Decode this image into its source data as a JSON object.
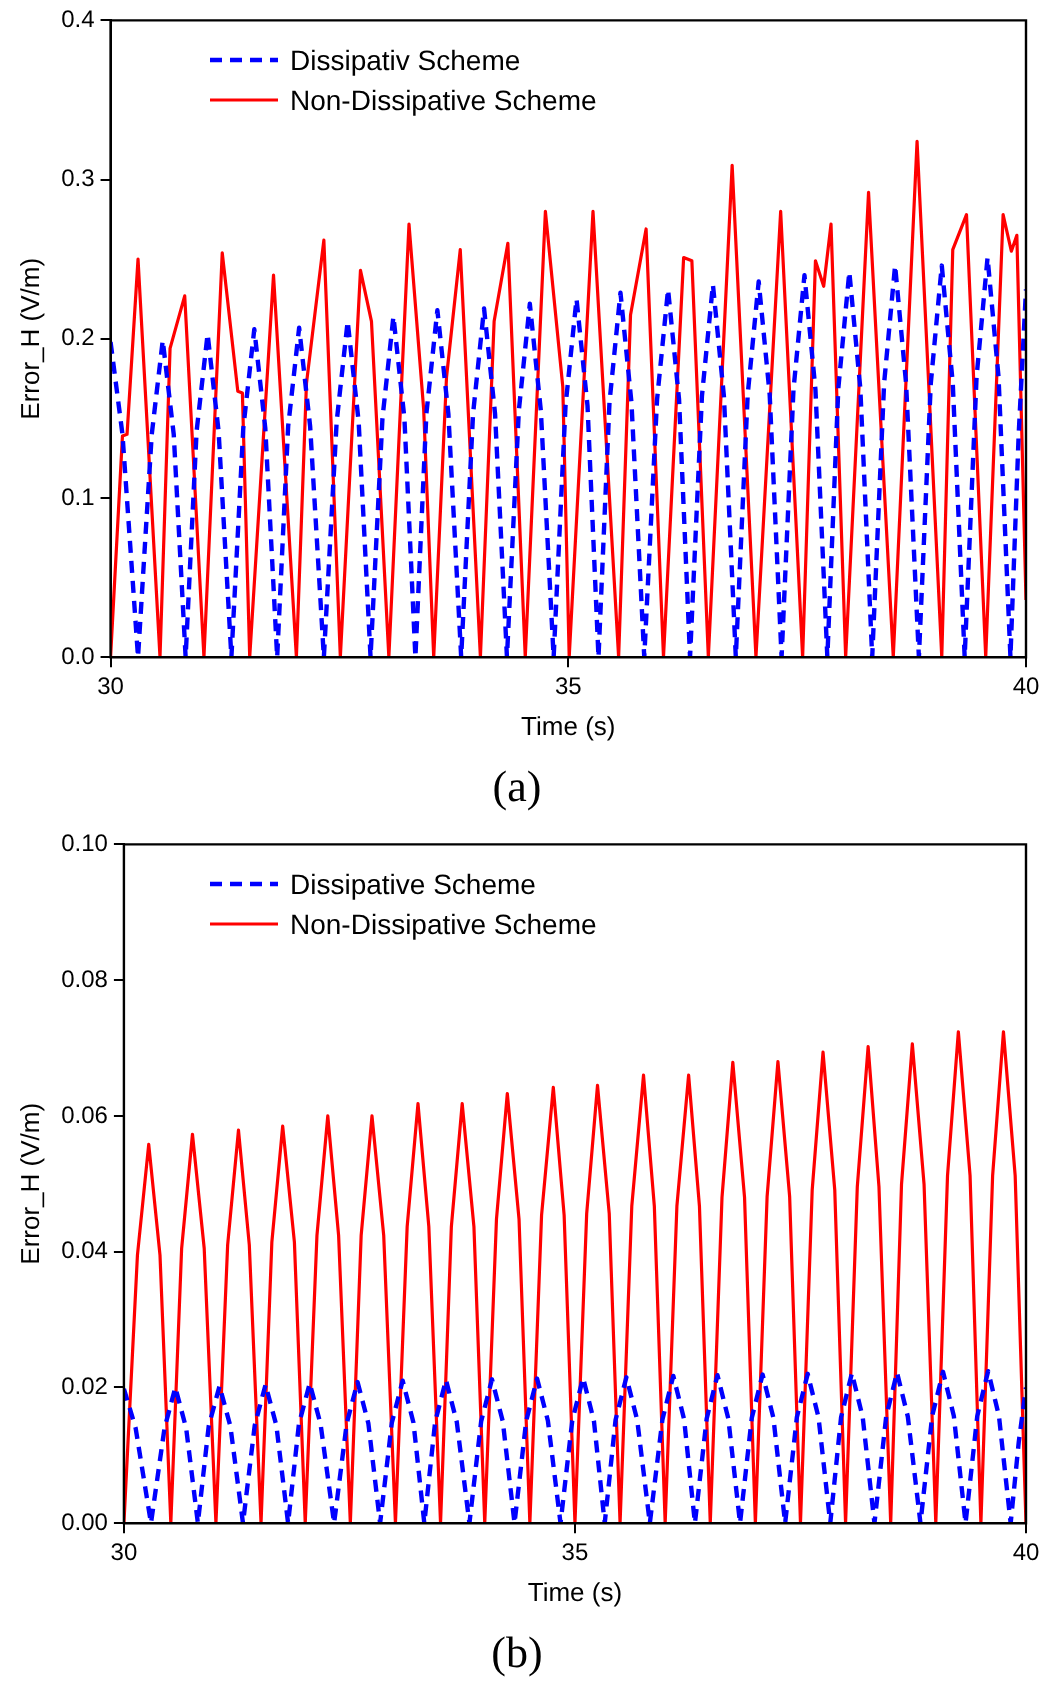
{
  "chart_data": [
    {
      "type": "line",
      "title": "(a)",
      "xlabel": "Time (s)",
      "ylabel": "Error_H (V/m)",
      "xlim": [
        30,
        40
      ],
      "xticks": [
        30,
        35,
        40
      ],
      "ylim": [
        0,
        0.4
      ],
      "yticks": [
        {
          "value": 0,
          "label": "0.0"
        },
        {
          "value": 0.1,
          "label": "0.1"
        },
        {
          "value": 0.2,
          "label": "0.2"
        },
        {
          "value": 0.3,
          "label": "0.3"
        },
        {
          "value": 0.4,
          "label": "0.4"
        }
      ],
      "grid": false,
      "legend": "top left",
      "marker": "none",
      "series": [
        {
          "name": "Dissipativ Scheme",
          "color": "#0000ff",
          "line_style": "dashed",
          "x": [
            30.0,
            30.13,
            30.3,
            30.45,
            30.57,
            30.69,
            30.82,
            30.94,
            31.06,
            31.18,
            31.32,
            31.45,
            31.57,
            31.69,
            31.82,
            31.94,
            32.06,
            32.18,
            32.33,
            32.47,
            32.59,
            32.71,
            32.84,
            32.97,
            33.09,
            33.21,
            33.33,
            33.45,
            33.57,
            33.69,
            33.83,
            33.96,
            34.08,
            34.2,
            34.33,
            34.46,
            34.58,
            34.7,
            34.84,
            34.97,
            35.09,
            35.21,
            35.33,
            35.45,
            35.57,
            35.69,
            35.83,
            35.97,
            36.09,
            36.21,
            36.33,
            36.46,
            36.58,
            36.7,
            36.83,
            36.96,
            37.08,
            37.2,
            37.33,
            37.46,
            37.58,
            37.7,
            37.83,
            37.95,
            38.07,
            38.19,
            38.32,
            38.45,
            38.57,
            38.69,
            38.83,
            38.96,
            39.08,
            39.2,
            39.33,
            39.46,
            39.58,
            39.7,
            39.83,
            39.92,
            40.0
          ],
          "values": [
            0.198,
            0.14,
            0,
            0.14,
            0.199,
            0.14,
            0,
            0.142,
            0.203,
            0.142,
            0,
            0.144,
            0.206,
            0.144,
            0,
            0.145,
            0.207,
            0.145,
            0,
            0.148,
            0.211,
            0.148,
            0,
            0.15,
            0.214,
            0.15,
            0,
            0.153,
            0.218,
            0.153,
            0,
            0.153,
            0.219,
            0.153,
            0,
            0.155,
            0.222,
            0.155,
            0,
            0.158,
            0.225,
            0.158,
            0,
            0.16,
            0.229,
            0.16,
            0,
            0.162,
            0.231,
            0.162,
            0,
            0.164,
            0.234,
            0.164,
            0,
            0.165,
            0.236,
            0.165,
            0,
            0.168,
            0.24,
            0.168,
            0,
            0.169,
            0.242,
            0.169,
            0,
            0.172,
            0.246,
            0.172,
            0,
            0.172,
            0.246,
            0.172,
            0,
            0.176,
            0.251,
            0.176,
            0,
            0.14,
            0.231
          ]
        },
        {
          "name": "Non-Dissipative Scheme",
          "color": "#ff0000",
          "line_style": "solid",
          "x": [
            30.0,
            30.13,
            30.18,
            30.3,
            30.54,
            30.65,
            30.81,
            31.02,
            31.22,
            31.39,
            31.44,
            31.52,
            31.78,
            32.03,
            32.14,
            32.33,
            32.51,
            32.73,
            32.85,
            33.04,
            33.26,
            33.42,
            33.53,
            33.67,
            33.82,
            34.04,
            34.19,
            34.34,
            34.53,
            34.75,
            34.94,
            35.01,
            35.27,
            35.55,
            35.68,
            35.85,
            36.04,
            36.26,
            36.35,
            36.53,
            36.79,
            37.05,
            37.32,
            37.56,
            37.7,
            37.79,
            37.87,
            38.03,
            38.28,
            38.55,
            38.81,
            39.08,
            39.2,
            39.35,
            39.56,
            39.75,
            39.84,
            39.9,
            40.0
          ],
          "values": [
            0,
            0.139,
            0.14,
            0.25,
            0,
            0.194,
            0.227,
            0,
            0.254,
            0.167,
            0.166,
            0,
            0.24,
            0,
            0.172,
            0.262,
            0,
            0.243,
            0.211,
            0,
            0.272,
            0.156,
            0,
            0.176,
            0.256,
            0,
            0.211,
            0.26,
            0,
            0.28,
            0.17,
            0,
            0.28,
            0,
            0.215,
            0.269,
            0,
            0.251,
            0.249,
            0,
            0.309,
            0,
            0.28,
            0,
            0.249,
            0.233,
            0.272,
            0,
            0.292,
            0,
            0.324,
            0,
            0.256,
            0.278,
            0,
            0.278,
            0.255,
            0.265,
            0.036
          ]
        }
      ]
    },
    {
      "type": "line",
      "title": "(b)",
      "xlabel": "Time (s)",
      "ylabel": "Error_H (V/m)",
      "xlim": [
        30,
        40
      ],
      "xticks": [
        30,
        35,
        40
      ],
      "ylim": [
        0,
        0.1
      ],
      "yticks": [
        {
          "value": 0,
          "label": "0.00"
        },
        {
          "value": 0.02,
          "label": "0.02"
        },
        {
          "value": 0.04,
          "label": "0.04"
        },
        {
          "value": 0.06,
          "label": "0.06"
        },
        {
          "value": 0.08,
          "label": "0.08"
        },
        {
          "value": 0.1,
          "label": "0.10"
        }
      ],
      "grid": false,
      "legend": "top left",
      "marker": "none",
      "series": [
        {
          "name": "Dissipative Scheme",
          "color": "#0000ff",
          "line_style": "dashed",
          "x": [
            30.0,
            30.13,
            30.3,
            30.45,
            30.57,
            30.69,
            30.82,
            30.94,
            31.06,
            31.18,
            31.32,
            31.45,
            31.57,
            31.69,
            31.82,
            31.94,
            32.06,
            32.18,
            32.33,
            32.47,
            32.59,
            32.71,
            32.84,
            32.97,
            33.09,
            33.21,
            33.33,
            33.45,
            33.57,
            33.69,
            33.83,
            33.96,
            34.08,
            34.2,
            34.33,
            34.46,
            34.58,
            34.7,
            34.84,
            34.97,
            35.09,
            35.21,
            35.33,
            35.45,
            35.57,
            35.69,
            35.83,
            35.97,
            36.09,
            36.21,
            36.33,
            36.46,
            36.58,
            36.7,
            36.83,
            36.96,
            37.08,
            37.2,
            37.33,
            37.46,
            37.58,
            37.7,
            37.83,
            37.95,
            38.07,
            38.19,
            38.32,
            38.45,
            38.57,
            38.69,
            38.83,
            38.96,
            39.08,
            39.2,
            39.33,
            39.46,
            39.58,
            39.7,
            39.83,
            39.92,
            40.0
          ],
          "values": [
            0.0198,
            0.014,
            0,
            0.014,
            0.02,
            0.014,
            0,
            0.0143,
            0.0202,
            0.0143,
            0,
            0.0144,
            0.0204,
            0.0144,
            0,
            0.0146,
            0.0206,
            0.0146,
            0,
            0.0147,
            0.0208,
            0.0147,
            0,
            0.0148,
            0.021,
            0.0148,
            0,
            0.0149,
            0.0211,
            0.0149,
            0,
            0.015,
            0.0212,
            0.015,
            0,
            0.0151,
            0.0213,
            0.0151,
            0,
            0.0151,
            0.0214,
            0.0151,
            0,
            0.0152,
            0.0215,
            0.0152,
            0,
            0.0153,
            0.0217,
            0.0153,
            0,
            0.0154,
            0.0218,
            0.0154,
            0,
            0.0155,
            0.0219,
            0.0155,
            0,
            0.0156,
            0.022,
            0.0156,
            0,
            0.0156,
            0.0221,
            0.0156,
            0,
            0.0157,
            0.0222,
            0.0157,
            0,
            0.0158,
            0.0223,
            0.0158,
            0,
            0.0158,
            0.0224,
            0.0158,
            0,
            0.012,
            0.02
          ]
        },
        {
          "name": "Non-Dissipative Scheme",
          "color": "#ff0000",
          "line_style": "solid",
          "x": [
            30.0,
            30.15,
            30.275,
            30.4,
            30.52,
            30.64,
            30.76,
            30.89,
            31.02,
            31.15,
            31.27,
            31.39,
            31.52,
            31.64,
            31.76,
            31.89,
            32.01,
            32.14,
            32.26,
            32.38,
            32.51,
            32.63,
            32.75,
            32.88,
            33.01,
            33.14,
            33.26,
            33.38,
            33.51,
            33.63,
            33.75,
            33.88,
            34.0,
            34.13,
            34.25,
            34.38,
            34.5,
            34.63,
            34.76,
            34.88,
            35.0,
            35.13,
            35.25,
            35.38,
            35.5,
            35.63,
            35.76,
            35.88,
            36.0,
            36.13,
            36.26,
            36.38,
            36.5,
            36.63,
            36.75,
            36.88,
            37.0,
            37.13,
            37.25,
            37.38,
            37.5,
            37.63,
            37.75,
            37.88,
            38.0,
            38.13,
            38.25,
            38.37,
            38.5,
            38.62,
            38.74,
            38.87,
            39.0,
            39.13,
            39.25,
            39.38,
            39.5,
            39.63,
            39.75,
            39.88,
            40.0
          ],
          "values": [
            0,
            0.0395,
            0.0558,
            0.0395,
            0,
            0.0405,
            0.0573,
            0.0405,
            0,
            0.041,
            0.0579,
            0.041,
            0,
            0.0414,
            0.0585,
            0.0414,
            0,
            0.0424,
            0.06,
            0.0424,
            0,
            0.0424,
            0.06,
            0.0424,
            0,
            0.0437,
            0.0618,
            0.0437,
            0,
            0.0437,
            0.0618,
            0.0437,
            0,
            0.0448,
            0.0633,
            0.0448,
            0,
            0.0454,
            0.0642,
            0.0454,
            0,
            0.0456,
            0.0645,
            0.0456,
            0,
            0.0467,
            0.066,
            0.0467,
            0,
            0.0467,
            0.066,
            0.0467,
            0,
            0.048,
            0.0679,
            0.048,
            0,
            0.0481,
            0.068,
            0.0481,
            0,
            0.0491,
            0.0694,
            0.0491,
            0,
            0.0496,
            0.0702,
            0.0496,
            0,
            0.0499,
            0.0706,
            0.0499,
            0,
            0.0512,
            0.0724,
            0.0512,
            0,
            0.0512,
            0.0724,
            0.0512,
            0
          ]
        }
      ]
    }
  ]
}
